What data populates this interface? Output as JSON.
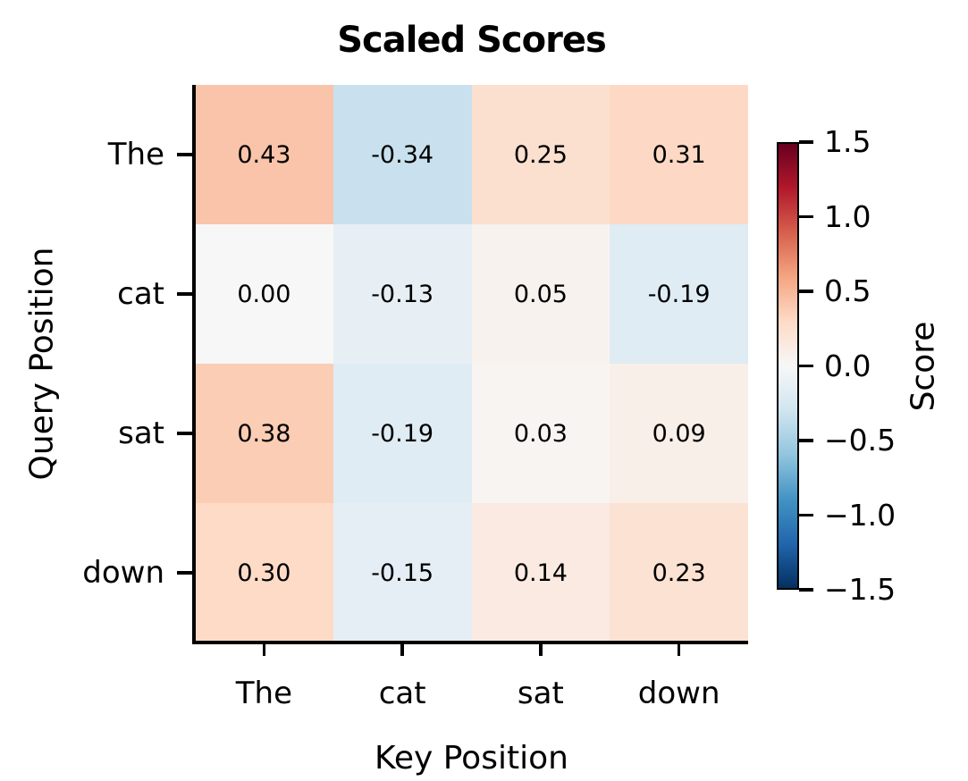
{
  "figure": {
    "background": "#ffffff",
    "text_color": "#000000",
    "spine_color": "#000000"
  },
  "chart_data": {
    "type": "heatmap",
    "title": "Scaled Scores",
    "xlabel": "Key Position",
    "ylabel": "Query Position",
    "x_categories": [
      "The",
      "cat",
      "sat",
      "down"
    ],
    "y_categories": [
      "The",
      "cat",
      "sat",
      "down"
    ],
    "values": [
      [
        0.43,
        -0.34,
        0.25,
        0.31
      ],
      [
        0.0,
        -0.13,
        0.05,
        -0.19
      ],
      [
        0.38,
        -0.19,
        0.03,
        0.09
      ],
      [
        0.3,
        -0.15,
        0.14,
        0.23
      ]
    ],
    "cell_label_format": "2-decimals",
    "grid": false,
    "colorbar": {
      "label": "Score",
      "position": "right",
      "vmin": -1.5,
      "vmax": 1.5,
      "tick_labels": [
        "1.5",
        "1.0",
        "0.5",
        "0.0",
        "−0.5",
        "−1.0",
        "−1.5"
      ],
      "tick_values": [
        1.5,
        1.0,
        0.5,
        0.0,
        -0.5,
        -1.0,
        -1.5
      ],
      "colormap": "RdBu_r",
      "colormap_anchors": [
        "#053061",
        "#2166ac",
        "#4393c3",
        "#92c5de",
        "#d1e5f0",
        "#f7f7f7",
        "#fddbc7",
        "#f4a582",
        "#d6604d",
        "#b2182b",
        "#67001f"
      ]
    }
  }
}
